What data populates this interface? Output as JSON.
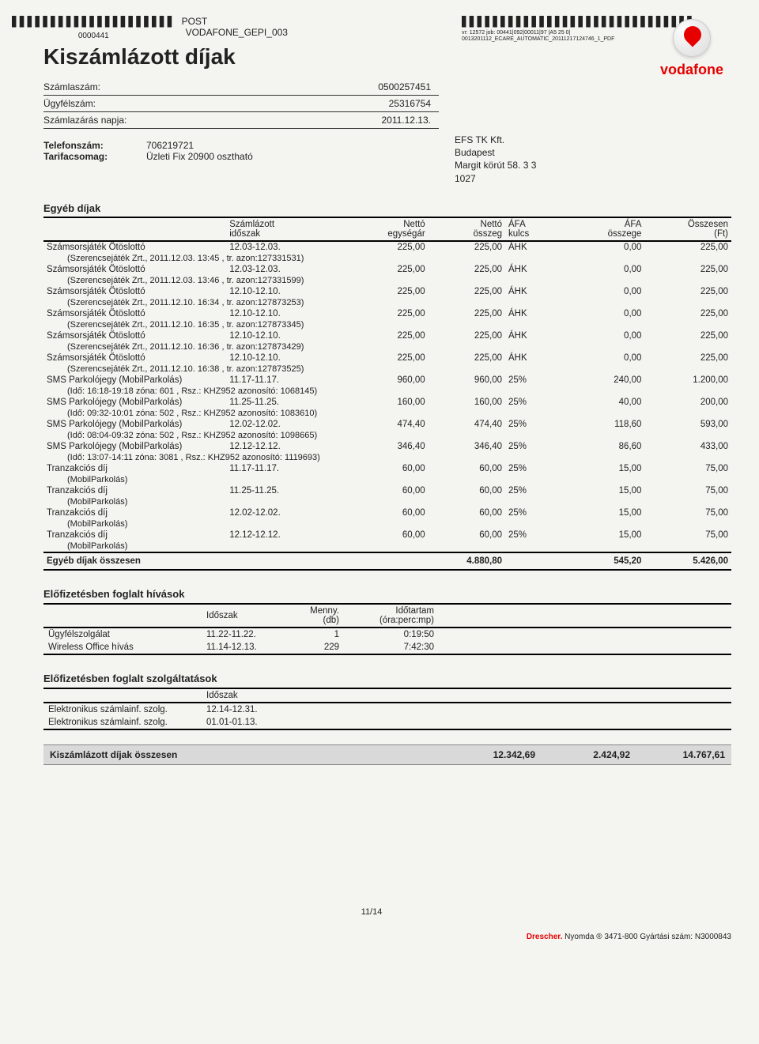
{
  "meta": {
    "barcode_num": "0000441",
    "post": "POST",
    "doc_code": "VODAFONE_GEPI_003",
    "tiny1": "vr: 12572 job: 00441|092|00011|97 |A5 25 0|",
    "tiny2": "0013201112_ECARE_AUTOMATIC_20111217124746_1_PDF"
  },
  "title": "Kiszámlázott díjak",
  "brand": "vodafone",
  "header": [
    {
      "label": "Számlaszám:",
      "value": "0500257451"
    },
    {
      "label": "Ügyfélszám:",
      "value": "25316754"
    },
    {
      "label": "Számlazárás napja:",
      "value": "2011.12.13."
    }
  ],
  "phone": {
    "tel_lab": "Telefonszám:",
    "tel_val": "706219721",
    "tar_lab": "Tarifacsomag:",
    "tar_val": "Üzleti Fix 20900 osztható"
  },
  "recipient": [
    "EFS TK Kft.",
    "Budapest",
    "Margit körút 58. 3 3",
    "1027"
  ],
  "fees": {
    "title": "Egyéb díjak",
    "headers": {
      "c1a": "Számlázott",
      "c1b": "időszak",
      "c2a": "Nettó",
      "c2b": "egységár",
      "c3a": "Nettó",
      "c3b": "összeg",
      "c4a": "ÁFA",
      "c4b": "kulcs",
      "c5a": "ÁFA",
      "c5b": "összege",
      "c6a": "Összesen",
      "c6b": "(Ft)"
    },
    "rows": [
      {
        "name": "Számsorsjáték Ötöslottó",
        "period": "12.03-12.03.",
        "unit": "225,00",
        "net": "225,00",
        "vk": "ÁHK",
        "va": "0,00",
        "tot": "225,00",
        "detail": "(Szerencsejáték Zrt., 2011.12.03. 13:45 , tr. azon:127331531)"
      },
      {
        "name": "Számsorsjáték Ötöslottó",
        "period": "12.03-12.03.",
        "unit": "225,00",
        "net": "225,00",
        "vk": "ÁHK",
        "va": "0,00",
        "tot": "225,00",
        "detail": "(Szerencsejáték Zrt., 2011.12.03. 13:46 , tr. azon:127331599)"
      },
      {
        "name": "Számsorsjáték Ötöslottó",
        "period": "12.10-12.10.",
        "unit": "225,00",
        "net": "225,00",
        "vk": "ÁHK",
        "va": "0,00",
        "tot": "225,00",
        "detail": "(Szerencsejáték Zrt., 2011.12.10. 16:34 , tr. azon:127873253)"
      },
      {
        "name": "Számsorsjáték Ötöslottó",
        "period": "12.10-12.10.",
        "unit": "225,00",
        "net": "225,00",
        "vk": "ÁHK",
        "va": "0,00",
        "tot": "225,00",
        "detail": "(Szerencsejáték Zrt., 2011.12.10. 16:35 , tr. azon:127873345)"
      },
      {
        "name": "Számsorsjáték Ötöslottó",
        "period": "12.10-12.10.",
        "unit": "225,00",
        "net": "225,00",
        "vk": "ÁHK",
        "va": "0,00",
        "tot": "225,00",
        "detail": "(Szerencsejáték Zrt., 2011.12.10. 16:36 , tr. azon:127873429)"
      },
      {
        "name": "Számsorsjáték Ötöslottó",
        "period": "12.10-12.10.",
        "unit": "225,00",
        "net": "225,00",
        "vk": "ÁHK",
        "va": "0,00",
        "tot": "225,00",
        "detail": "(Szerencsejáték Zrt., 2011.12.10. 16:38 , tr. azon:127873525)"
      },
      {
        "name": "SMS Parkolójegy (MobilParkolás)",
        "period": "11.17-11.17.",
        "unit": "960,00",
        "net": "960,00",
        "vk": "25%",
        "va": "240,00",
        "tot": "1.200,00",
        "detail": "(Idő: 16:18-19:18 zóna: 601 , Rsz.: KHZ952 azonosító: 1068145)"
      },
      {
        "name": "SMS Parkolójegy (MobilParkolás)",
        "period": "11.25-11.25.",
        "unit": "160,00",
        "net": "160,00",
        "vk": "25%",
        "va": "40,00",
        "tot": "200,00",
        "detail": "(Idő: 09:32-10:01 zóna: 502 , Rsz.: KHZ952 azonosító: 1083610)"
      },
      {
        "name": "SMS Parkolójegy (MobilParkolás)",
        "period": "12.02-12.02.",
        "unit": "474,40",
        "net": "474,40",
        "vk": "25%",
        "va": "118,60",
        "tot": "593,00",
        "detail": "(Idő: 08:04-09:32 zóna: 502 , Rsz.: KHZ952 azonosító: 1098665)"
      },
      {
        "name": "SMS Parkolójegy (MobilParkolás)",
        "period": "12.12-12.12.",
        "unit": "346,40",
        "net": "346,40",
        "vk": "25%",
        "va": "86,60",
        "tot": "433,00",
        "detail": "(Idő: 13:07-14:11 zóna: 3081 , Rsz.: KHZ952 azonosító: 1119693)"
      },
      {
        "name": "Tranzakciós díj",
        "period": "11.17-11.17.",
        "unit": "60,00",
        "net": "60,00",
        "vk": "25%",
        "va": "15,00",
        "tot": "75,00",
        "detail": "(MobilParkolás)"
      },
      {
        "name": "Tranzakciós díj",
        "period": "11.25-11.25.",
        "unit": "60,00",
        "net": "60,00",
        "vk": "25%",
        "va": "15,00",
        "tot": "75,00",
        "detail": "(MobilParkolás)"
      },
      {
        "name": "Tranzakciós díj",
        "period": "12.02-12.02.",
        "unit": "60,00",
        "net": "60,00",
        "vk": "25%",
        "va": "15,00",
        "tot": "75,00",
        "detail": "(MobilParkolás)"
      },
      {
        "name": "Tranzakciós díj",
        "period": "12.12-12.12.",
        "unit": "60,00",
        "net": "60,00",
        "vk": "25%",
        "va": "15,00",
        "tot": "75,00",
        "detail": "(MobilParkolás)"
      }
    ],
    "total_label": "Egyéb díjak összesen",
    "total_net": "4.880,80",
    "total_vat": "545,20",
    "total_sum": "5.426,00"
  },
  "calls": {
    "title": "Előfizetésben foglalt hívások",
    "headers": {
      "c1": "Időszak",
      "c2a": "Menny.",
      "c2b": "(db)",
      "c3a": "Időtartam",
      "c3b": "(óra:perc:mp)"
    },
    "rows": [
      {
        "name": "Ügyfélszolgálat",
        "period": "11.22-11.22.",
        "qty": "1",
        "dur": "0:19:50"
      },
      {
        "name": "Wireless Office hívás",
        "period": "11.14-12.13.",
        "qty": "229",
        "dur": "7:42:30"
      }
    ]
  },
  "services": {
    "title": "Előfizetésben foglalt szolgáltatások",
    "header": "Időszak",
    "rows": [
      {
        "name": "Elektronikus számlainf. szolg.",
        "period": "12.14-12.31."
      },
      {
        "name": "Elektronikus számlainf. szolg.",
        "period": "01.01-01.13."
      }
    ]
  },
  "grand": {
    "label": "Kiszámlázott díjak összesen",
    "v1": "12.342,69",
    "v2": "2.424,92",
    "v3": "14.767,61"
  },
  "page": "11/14",
  "footer": {
    "dre": "Drescher.",
    "rest": " Nyomda ® 3471-800 Gyártási szám: N3000843"
  }
}
